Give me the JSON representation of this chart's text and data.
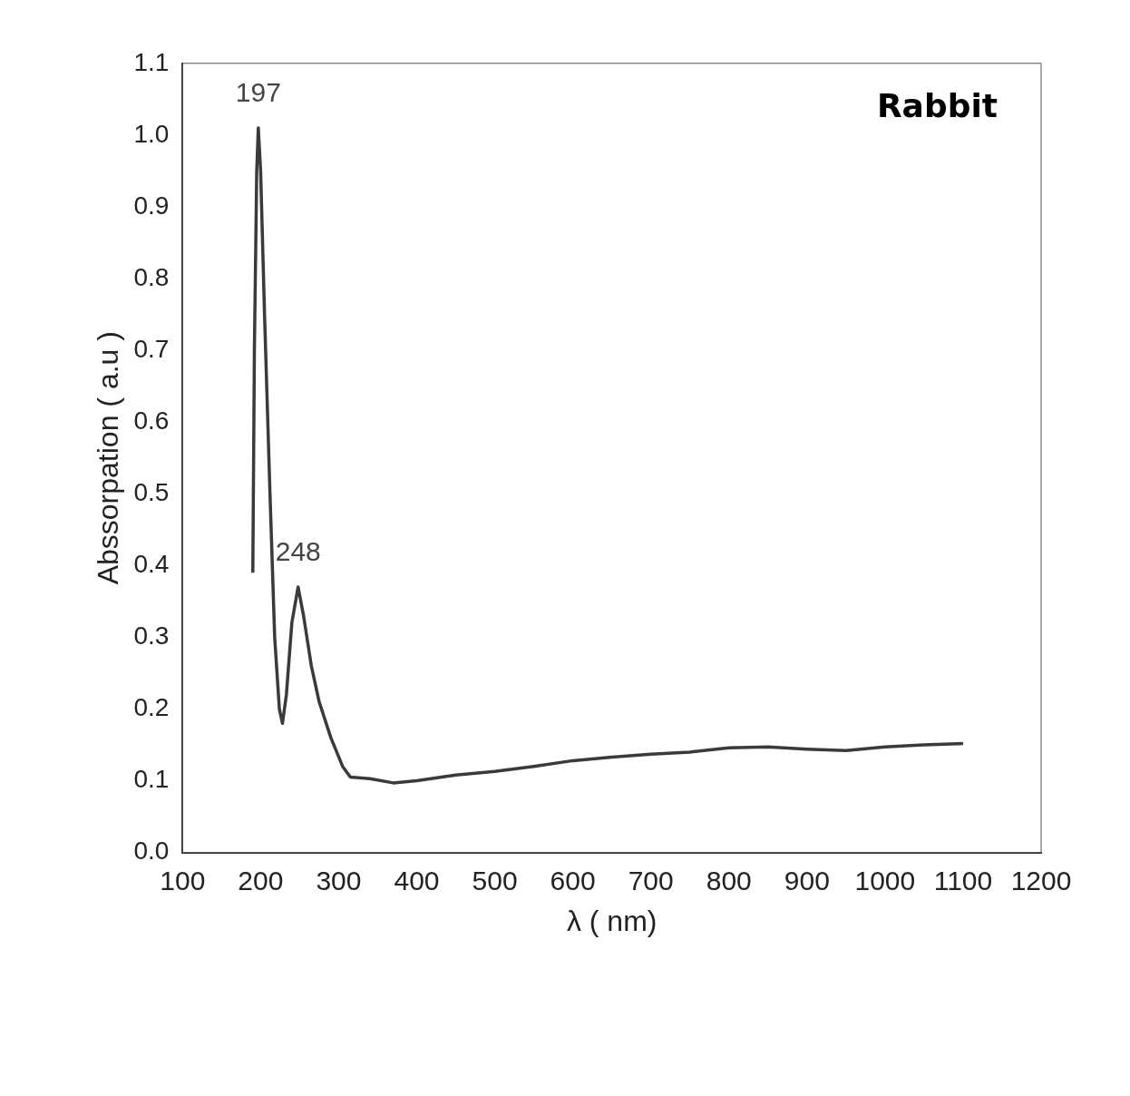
{
  "chart_data": {
    "type": "line",
    "xlabel": "λ ( nm)",
    "ylabel": "Abssorpation ( a.u )",
    "annotations": [
      "Rabbit",
      {
        "text": "197",
        "x": 197,
        "y": 1.01
      },
      {
        "text": "248",
        "x": 248,
        "y": 0.37
      }
    ],
    "series": [
      {
        "color": "#3a3a3a",
        "x": [
          190,
          192,
          195,
          197,
          200,
          205,
          212,
          218,
          224,
          228,
          233,
          240,
          248,
          255,
          265,
          275,
          290,
          305,
          315,
          340,
          370,
          400,
          450,
          500,
          550,
          600,
          650,
          700,
          750,
          800,
          850,
          900,
          950,
          1000,
          1050,
          1100
        ],
        "values": [
          0.39,
          0.7,
          0.95,
          1.01,
          0.95,
          0.75,
          0.5,
          0.3,
          0.2,
          0.18,
          0.22,
          0.32,
          0.37,
          0.33,
          0.26,
          0.21,
          0.16,
          0.12,
          0.105,
          0.103,
          0.097,
          0.1,
          0.108,
          0.113,
          0.12,
          0.128,
          0.133,
          0.137,
          0.14,
          0.146,
          0.147,
          0.144,
          0.142,
          0.147,
          0.15,
          0.152
        ]
      }
    ],
    "xlim": [
      100,
      1200
    ],
    "xticks": [
      100,
      200,
      300,
      400,
      500,
      600,
      700,
      800,
      900,
      1000,
      1100,
      1200
    ],
    "ylim": [
      0,
      1.1
    ],
    "yticks": [
      {
        "value": 0,
        "label": "0.0"
      },
      0.1,
      0.2,
      0.3,
      0.4,
      0.5,
      0.6,
      0.7,
      0.8,
      0.9,
      {
        "value": 1,
        "label": "1.0"
      },
      1.1
    ],
    "grid": false,
    "legend": false,
    "marker": "none",
    "line_style": "solid"
  }
}
